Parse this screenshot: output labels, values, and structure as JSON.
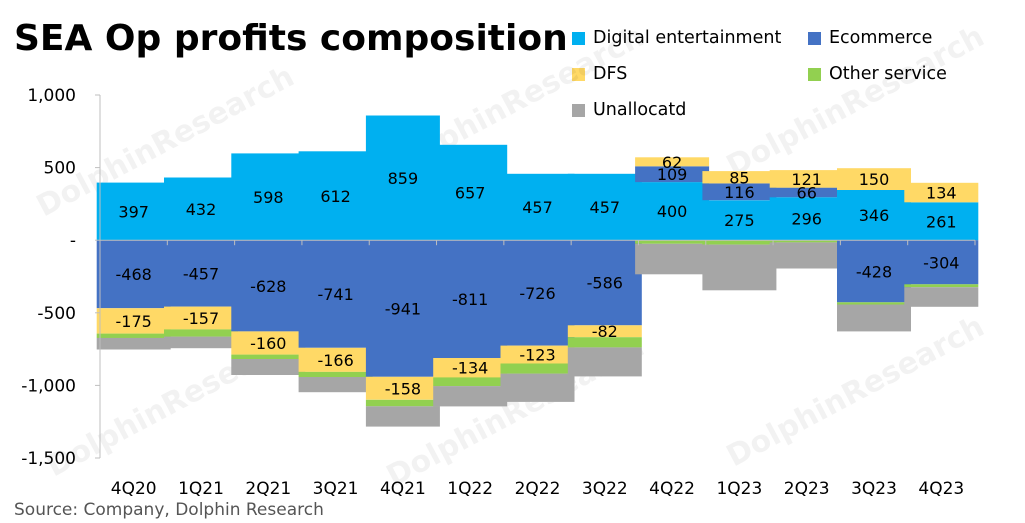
{
  "title": "SEA Op profits composition",
  "source": "Source: Company, Dolphin Research",
  "chart_data": {
    "type": "bar",
    "stacked": true,
    "categories": [
      "4Q20",
      "1Q21",
      "2Q21",
      "3Q21",
      "4Q21",
      "1Q22",
      "2Q22",
      "3Q22",
      "4Q22",
      "1Q23",
      "2Q23",
      "3Q23",
      "4Q23"
    ],
    "series": [
      {
        "name": "Digital entertainment",
        "color": "#00B0F0",
        "values": [
          397,
          432,
          598,
          612,
          859,
          657,
          457,
          457,
          400,
          275,
          296,
          346,
          261
        ]
      },
      {
        "name": "Ecommerce",
        "color": "#4472C4",
        "values": [
          -468,
          -457,
          -628,
          -741,
          -941,
          -811,
          -726,
          -586,
          109,
          116,
          66,
          -428,
          -304
        ]
      },
      {
        "name": "DFS",
        "color": "#FFD966",
        "values": [
          -175,
          -157,
          -160,
          -166,
          -158,
          -134,
          -123,
          -82,
          62,
          85,
          121,
          150,
          134
        ]
      },
      {
        "name": "Other service",
        "color": "#92D050",
        "values": [
          -30,
          -50,
          -30,
          -35,
          -45,
          -60,
          -70,
          -70,
          -25,
          -30,
          -15,
          -15,
          -20
        ]
      },
      {
        "name": "Unallocatd",
        "color": "#A6A6A6",
        "values": [
          -80,
          -80,
          -110,
          -105,
          -140,
          -140,
          -195,
          -200,
          -210,
          -315,
          -180,
          -185,
          -135
        ]
      }
    ],
    "data_labels": [
      [
        "397",
        "432",
        "598",
        "612",
        "859",
        "657",
        "457",
        "457",
        "400",
        "275",
        "296",
        "346",
        "261"
      ],
      [
        "-468",
        "-457",
        "-628",
        "-741",
        "-941",
        "-811",
        "-726",
        "-586",
        "109",
        "116",
        "66",
        "-428",
        "-304"
      ],
      [
        "-175",
        "-157",
        "-160",
        "-166",
        "-158",
        "-134",
        "-123",
        "-82",
        "62",
        "85",
        "121",
        "150",
        "134"
      ],
      [
        "",
        "",
        "",
        "",
        "",
        "",
        "",
        "",
        "",
        "",
        "",
        "",
        ""
      ],
      [
        "",
        "",
        "",
        "",
        "",
        "",
        "",
        "",
        "",
        "",
        "",
        "",
        ""
      ]
    ],
    "yticks": [
      1000,
      500,
      0,
      -500,
      -1000,
      -1500
    ],
    "ytick_labels": [
      "1,000",
      "500",
      "-",
      "-500",
      "-1,000",
      "-1,500"
    ],
    "ylim": [
      -1500,
      1000
    ],
    "legend_position": "top-right",
    "grid": false
  },
  "watermark": "DolphinResearch"
}
